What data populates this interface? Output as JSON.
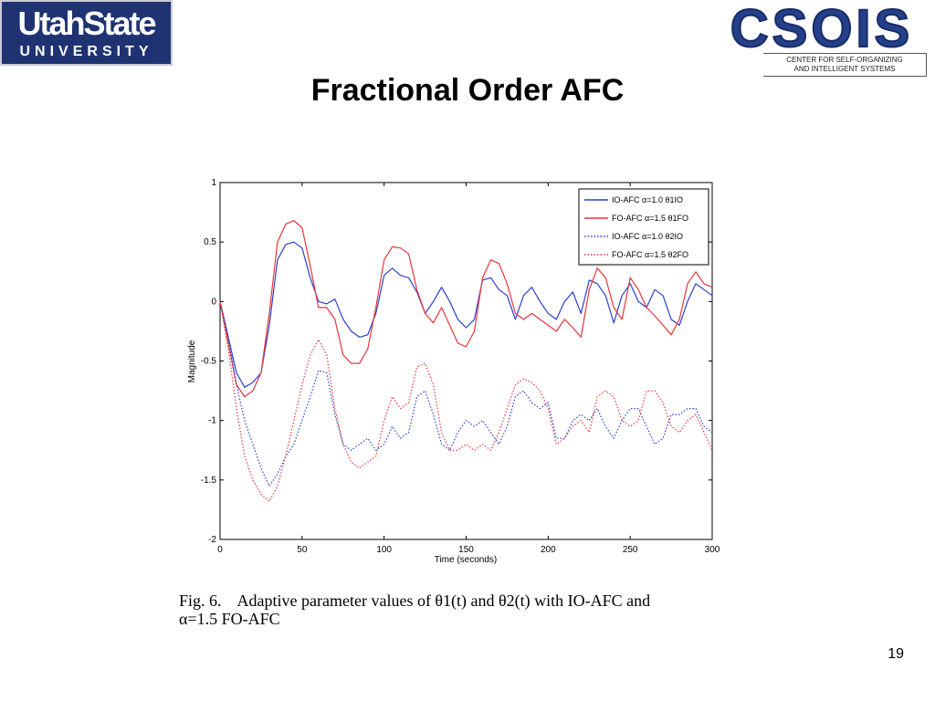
{
  "header": {
    "left_logo": {
      "line1": "UtahState",
      "line2": "UNIVERSITY"
    },
    "right_logo": {
      "word": "CSOIS",
      "line1": "CENTER FOR SELF-ORGANIZING",
      "line2": "AND INTELLIGENT SYSTEMS"
    }
  },
  "slide": {
    "title": "Fractional Order AFC",
    "caption_prefix": "Fig. 6.",
    "caption_line1": "Adaptive parameter values of θ1(t) and θ2(t) with IO-AFC and",
    "caption_line2": "α=1.5 FO-AFC",
    "page_number": "19"
  },
  "colors": {
    "blue": "#2a3fd0",
    "red": "#e8353b",
    "logo_navy": "#1f3272"
  },
  "chart_data": {
    "type": "line",
    "xlabel": "Time (seconds)",
    "ylabel": "Magnitude",
    "xlim": [
      0,
      300
    ],
    "ylim": [
      -2,
      1
    ],
    "xticks": [
      "0",
      "50",
      "100",
      "150",
      "200",
      "250",
      "300"
    ],
    "yticks": [
      "-2",
      "-1.5",
      "-1",
      "-0.5",
      "0",
      "0.5",
      "1"
    ],
    "grid": false,
    "legend_position": "top-right",
    "series": [
      {
        "name": "IO-AFC α=1.0 θ1IO",
        "color": "#2a3fd0",
        "style": "solid",
        "x": [
          0,
          5,
          10,
          15,
          20,
          25,
          30,
          35,
          40,
          45,
          50,
          55,
          60,
          65,
          70,
          75,
          80,
          85,
          90,
          95,
          100,
          105,
          110,
          115,
          120,
          125,
          130,
          135,
          140,
          145,
          150,
          155,
          160,
          165,
          170,
          175,
          180,
          185,
          190,
          195,
          200,
          205,
          210,
          215,
          220,
          225,
          230,
          235,
          240,
          245,
          250,
          255,
          260,
          265,
          270,
          275,
          280,
          285,
          290,
          295,
          300
        ],
        "y": [
          0,
          -0.3,
          -0.6,
          -0.72,
          -0.68,
          -0.6,
          -0.2,
          0.35,
          0.48,
          0.5,
          0.45,
          0.2,
          0.0,
          -0.02,
          0.02,
          -0.15,
          -0.25,
          -0.3,
          -0.28,
          -0.1,
          0.22,
          0.28,
          0.22,
          0.2,
          0.08,
          -0.1,
          0.0,
          0.12,
          0.0,
          -0.15,
          -0.22,
          -0.15,
          0.18,
          0.2,
          0.1,
          0.05,
          -0.15,
          0.05,
          0.12,
          0.0,
          -0.1,
          -0.15,
          0.0,
          0.08,
          -0.1,
          0.18,
          0.15,
          0.05,
          -0.18,
          0.05,
          0.15,
          0.0,
          -0.05,
          0.1,
          0.05,
          -0.15,
          -0.2,
          0.0,
          0.15,
          0.1,
          0.05
        ]
      },
      {
        "name": "FO-AFC α=1.5 θ1FO",
        "color": "#e8353b",
        "style": "solid",
        "x": [
          0,
          5,
          10,
          15,
          20,
          25,
          30,
          35,
          40,
          45,
          50,
          55,
          60,
          65,
          70,
          75,
          80,
          85,
          90,
          95,
          100,
          105,
          110,
          115,
          120,
          125,
          130,
          135,
          140,
          145,
          150,
          155,
          160,
          165,
          170,
          175,
          180,
          185,
          190,
          195,
          200,
          205,
          210,
          215,
          220,
          225,
          230,
          235,
          240,
          245,
          250,
          255,
          260,
          265,
          270,
          275,
          280,
          285,
          290,
          295,
          300
        ],
        "y": [
          0,
          -0.35,
          -0.7,
          -0.8,
          -0.75,
          -0.6,
          -0.1,
          0.5,
          0.65,
          0.68,
          0.62,
          0.3,
          -0.05,
          -0.05,
          -0.15,
          -0.45,
          -0.52,
          -0.52,
          -0.4,
          -0.05,
          0.35,
          0.46,
          0.45,
          0.4,
          0.1,
          -0.1,
          -0.18,
          -0.05,
          -0.2,
          -0.35,
          -0.38,
          -0.25,
          0.2,
          0.35,
          0.32,
          0.15,
          -0.1,
          -0.15,
          -0.1,
          -0.15,
          -0.2,
          -0.25,
          -0.15,
          -0.22,
          -0.3,
          0.1,
          0.28,
          0.2,
          -0.05,
          -0.15,
          0.2,
          0.1,
          -0.05,
          -0.12,
          -0.2,
          -0.28,
          -0.15,
          0.15,
          0.25,
          0.15,
          0.12
        ]
      },
      {
        "name": "IO-AFC α=1.0 θ2IO",
        "color": "#2a3fd0",
        "style": "dotted",
        "x": [
          0,
          5,
          10,
          15,
          20,
          25,
          30,
          35,
          40,
          45,
          50,
          55,
          60,
          65,
          70,
          75,
          80,
          85,
          90,
          95,
          100,
          105,
          110,
          115,
          120,
          125,
          130,
          135,
          140,
          145,
          150,
          155,
          160,
          165,
          170,
          175,
          180,
          185,
          190,
          195,
          200,
          205,
          210,
          215,
          220,
          225,
          230,
          235,
          240,
          245,
          250,
          255,
          260,
          265,
          270,
          275,
          280,
          285,
          290,
          295,
          300
        ],
        "y": [
          0,
          -0.3,
          -0.7,
          -1.0,
          -1.2,
          -1.4,
          -1.55,
          -1.45,
          -1.3,
          -1.2,
          -1.0,
          -0.8,
          -0.58,
          -0.6,
          -0.95,
          -1.2,
          -1.25,
          -1.2,
          -1.15,
          -1.25,
          -1.2,
          -1.05,
          -1.15,
          -1.1,
          -0.8,
          -0.75,
          -0.95,
          -1.2,
          -1.25,
          -1.1,
          -1.0,
          -1.05,
          -1.0,
          -1.1,
          -1.2,
          -1.05,
          -0.8,
          -0.75,
          -0.85,
          -0.9,
          -0.85,
          -1.15,
          -1.15,
          -1.0,
          -0.95,
          -1.0,
          -0.9,
          -1.05,
          -1.15,
          -1.0,
          -0.9,
          -0.9,
          -1.05,
          -1.2,
          -1.15,
          -0.95,
          -0.95,
          -0.9,
          -0.9,
          -1.05,
          -1.1
        ]
      },
      {
        "name": "FO-AFC α=1.5 θ2FO",
        "color": "#e8353b",
        "style": "dotted",
        "x": [
          0,
          5,
          10,
          15,
          20,
          25,
          30,
          35,
          40,
          45,
          50,
          55,
          60,
          65,
          70,
          75,
          80,
          85,
          90,
          95,
          100,
          105,
          110,
          115,
          120,
          125,
          130,
          135,
          140,
          145,
          150,
          155,
          160,
          165,
          170,
          175,
          180,
          185,
          190,
          195,
          200,
          205,
          210,
          215,
          220,
          225,
          230,
          235,
          240,
          245,
          250,
          255,
          260,
          265,
          270,
          275,
          280,
          285,
          290,
          295,
          300
        ],
        "y": [
          0,
          -0.4,
          -0.9,
          -1.3,
          -1.5,
          -1.62,
          -1.68,
          -1.55,
          -1.3,
          -1.0,
          -0.7,
          -0.45,
          -0.32,
          -0.45,
          -0.9,
          -1.2,
          -1.35,
          -1.4,
          -1.35,
          -1.3,
          -1.0,
          -0.8,
          -0.9,
          -0.85,
          -0.55,
          -0.52,
          -0.7,
          -1.1,
          -1.25,
          -1.25,
          -1.2,
          -1.25,
          -1.2,
          -1.25,
          -1.1,
          -0.9,
          -0.7,
          -0.65,
          -0.68,
          -0.75,
          -0.9,
          -1.2,
          -1.15,
          -1.05,
          -1.0,
          -1.1,
          -0.8,
          -0.75,
          -0.8,
          -1.0,
          -1.05,
          -1.0,
          -0.75,
          -0.75,
          -0.85,
          -1.05,
          -1.1,
          -1.0,
          -0.95,
          -1.1,
          -1.25
        ]
      }
    ]
  }
}
